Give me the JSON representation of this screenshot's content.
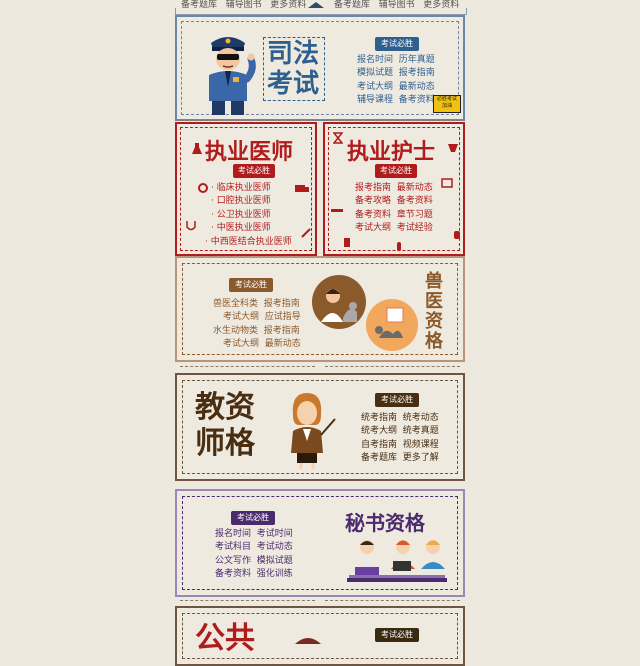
{
  "top_strip": {
    "left": [
      "备考题库",
      "辅导图书",
      "更多资料"
    ],
    "right": [
      "备考题库",
      "辅导图书",
      "更多资料"
    ]
  },
  "judicial": {
    "title_line1": "司法",
    "title_line2": "考试",
    "tag": "考试必胜",
    "links": [
      [
        "报名时间",
        "历年真题"
      ],
      [
        "模拟试题",
        "报考指南"
      ],
      [
        "考试大纲",
        "最新动态"
      ],
      [
        "辅导课程",
        "备考资料"
      ]
    ],
    "sticker": "必胜考试 加油",
    "color": "#2f5f8f"
  },
  "doctor": {
    "title": "执业医师",
    "tag": "考试必胜",
    "links": [
      "· 临床执业医师",
      "· 口腔执业医师",
      "· 公卫执业医师",
      "· 中医执业医师",
      "· 中西医结合执业医师"
    ],
    "color": "#b01c1c"
  },
  "nurse": {
    "title": "执业护士",
    "tag": "考试必胜",
    "links": [
      [
        "报考指南",
        "最新动态"
      ],
      [
        "备考攻略",
        "备考资料"
      ],
      [
        "备考资料",
        "章节习题"
      ],
      [
        "考试大纲",
        "考试经验"
      ]
    ],
    "color": "#b01c1c"
  },
  "vet": {
    "title_chars": [
      "兽",
      "医",
      "资",
      "格"
    ],
    "tag": "考试必胜",
    "links": [
      [
        "兽医全科类",
        "报考指南"
      ],
      [
        "考试大纲",
        "应试指导"
      ],
      [
        "水生动物类",
        "报考指南"
      ],
      [
        "考试大纲",
        "最新动态"
      ]
    ],
    "color": "#8b5a2b"
  },
  "teacher": {
    "title_line1": "教资",
    "title_line2": "师格",
    "tag": "考试必胜",
    "links": [
      [
        "统考指南",
        "统考动态"
      ],
      [
        "统考大纲",
        "统考真题"
      ],
      [
        "自考指南",
        "视频课程"
      ],
      [
        "备考题库",
        "更多了解"
      ]
    ],
    "color": "#4a2e12"
  },
  "secretary": {
    "title": "秘书资格",
    "tag": "考试必胜",
    "links": [
      [
        "报名时间",
        "考试时间"
      ],
      [
        "考试科目",
        "考试动态"
      ],
      [
        "公文写作",
        "模拟试题"
      ],
      [
        "备考资料",
        "强化训练"
      ]
    ],
    "color": "#4b2a6e"
  },
  "civil": {
    "title_partial": "公共",
    "tag": "考试必胜",
    "color": "#b01c1c"
  }
}
